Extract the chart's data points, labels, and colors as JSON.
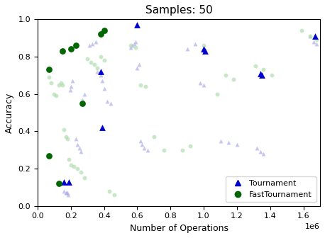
{
  "title": "Samples: 50",
  "xlabel": "Number of Operations",
  "ylabel": "Accuracy",
  "xlim": [
    0,
    1700000.0
  ],
  "ylim": [
    0.0,
    1.0
  ],
  "tournament_x": [
    160000,
    190000,
    380000,
    390000,
    600000,
    1000000,
    1010000,
    1340000,
    1350000,
    1670000
  ],
  "tournament_y": [
    0.13,
    0.13,
    0.72,
    0.42,
    0.97,
    0.84,
    0.83,
    0.71,
    0.7,
    0.91
  ],
  "fast_x": [
    70000,
    70000,
    130000,
    150000,
    200000,
    230000,
    270000,
    380000,
    400000
  ],
  "fast_y": [
    0.73,
    0.27,
    0.12,
    0.83,
    0.84,
    0.86,
    0.55,
    0.92,
    0.94
  ],
  "ghost_tournament_x": [
    160000,
    170000,
    175000,
    180000,
    185000,
    195000,
    200000,
    210000,
    230000,
    240000,
    250000,
    260000,
    270000,
    280000,
    310000,
    330000,
    350000,
    360000,
    380000,
    390000,
    400000,
    420000,
    440000,
    560000,
    570000,
    580000,
    590000,
    600000,
    610000,
    620000,
    630000,
    640000,
    660000,
    900000,
    950000,
    980000,
    1000000,
    1100000,
    1150000,
    1200000,
    1320000,
    1340000,
    1360000,
    1640000,
    1660000,
    1680000
  ],
  "ghost_tournament_y": [
    0.08,
    0.07,
    0.07,
    0.07,
    0.06,
    0.62,
    0.64,
    0.67,
    0.36,
    0.33,
    0.31,
    0.29,
    0.57,
    0.6,
    0.86,
    0.87,
    0.88,
    0.72,
    0.7,
    0.67,
    0.63,
    0.56,
    0.55,
    0.85,
    0.86,
    0.87,
    0.88,
    0.74,
    0.76,
    0.35,
    0.33,
    0.31,
    0.3,
    0.84,
    0.87,
    0.66,
    0.65,
    0.35,
    0.34,
    0.33,
    0.31,
    0.29,
    0.28,
    0.91,
    0.88,
    0.87
  ],
  "ghost_fast_x": [
    70000,
    80000,
    100000,
    110000,
    130000,
    140000,
    150000,
    160000,
    170000,
    180000,
    190000,
    200000,
    220000,
    240000,
    260000,
    280000,
    300000,
    320000,
    340000,
    360000,
    380000,
    400000,
    430000,
    460000,
    560000,
    590000,
    620000,
    650000,
    700000,
    760000,
    870000,
    920000,
    1000000,
    1080000,
    1130000,
    1180000,
    1310000,
    1360000,
    1410000,
    1590000,
    1640000,
    1680000
  ],
  "ghost_fast_y": [
    0.69,
    0.66,
    0.6,
    0.59,
    0.65,
    0.66,
    0.65,
    0.41,
    0.37,
    0.36,
    0.25,
    0.22,
    0.21,
    0.2,
    0.18,
    0.15,
    0.79,
    0.77,
    0.76,
    0.74,
    0.8,
    0.78,
    0.08,
    0.06,
    0.86,
    0.85,
    0.65,
    0.64,
    0.37,
    0.3,
    0.3,
    0.32,
    0.86,
    0.6,
    0.7,
    0.68,
    0.75,
    0.73,
    0.7,
    0.94,
    0.91,
    0.89
  ],
  "tournament_color": "#0000cc",
  "fast_color": "#006600",
  "ghost_tournament_color": "#b0b0e8",
  "ghost_fast_color": "#b0ddb0",
  "ghost_marker_size": 18,
  "main_marker_size": 40,
  "title_fontsize": 11,
  "label_fontsize": 9
}
